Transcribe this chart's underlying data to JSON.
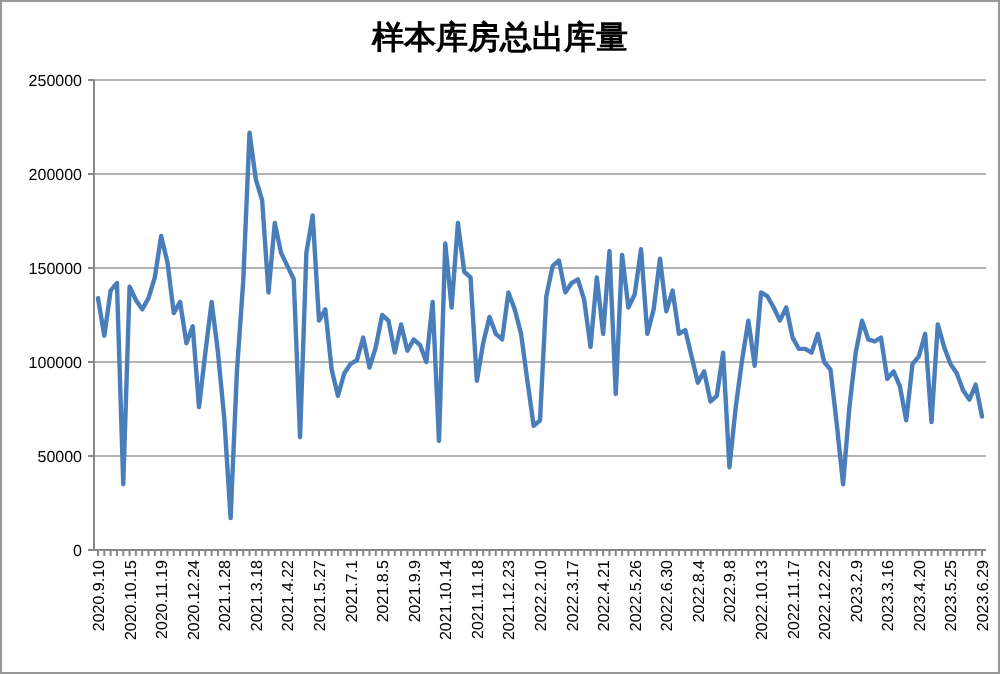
{
  "chart_data": {
    "type": "line",
    "title": "样本库房总出库量",
    "categories": [
      "2020.9.10",
      null,
      null,
      null,
      null,
      "2020.10.15",
      null,
      null,
      null,
      null,
      "2020.11.19",
      null,
      null,
      null,
      null,
      "2020.12.24",
      null,
      null,
      null,
      null,
      "2021.1.28",
      null,
      null,
      null,
      null,
      "2021.3.18",
      null,
      null,
      null,
      null,
      "2021.4.22",
      null,
      null,
      null,
      null,
      "2021.5.27",
      null,
      null,
      null,
      null,
      "2021.7.1",
      null,
      null,
      null,
      null,
      "2021.8.5",
      null,
      null,
      null,
      null,
      "2021.9.9",
      null,
      null,
      null,
      null,
      "2021.10.14",
      null,
      null,
      null,
      null,
      "2021.11.18",
      null,
      null,
      null,
      null,
      "2021.12.23",
      null,
      null,
      null,
      null,
      "2022.2.10",
      null,
      null,
      null,
      null,
      "2022.3.17",
      null,
      null,
      null,
      null,
      "2022.4.21",
      null,
      null,
      null,
      null,
      "2022.5.26",
      null,
      null,
      null,
      null,
      "2022.6.30",
      null,
      null,
      null,
      null,
      "2022.8.4",
      null,
      null,
      null,
      null,
      "2022.9.8",
      null,
      null,
      null,
      null,
      "2022.10.13",
      null,
      null,
      null,
      null,
      "2022.11.17",
      null,
      null,
      null,
      null,
      "2022.12.22",
      null,
      null,
      null,
      null,
      "2023.2.9",
      null,
      null,
      null,
      null,
      "2023.3.16",
      null,
      null,
      null,
      null,
      "2023.4.20",
      null,
      null,
      null,
      null,
      "2023.5.25",
      null,
      null,
      null,
      null,
      "2023.6.29"
    ],
    "series": [
      {
        "color": "#4a7ebb",
        "values": [
          134000,
          114000,
          138000,
          142000,
          35000,
          140000,
          133000,
          128000,
          134000,
          145000,
          167000,
          153000,
          126000,
          132000,
          110000,
          119000,
          76000,
          105000,
          132000,
          105000,
          70000,
          17000,
          95000,
          143000,
          222000,
          197000,
          186000,
          137000,
          174000,
          158000,
          151000,
          144000,
          60000,
          158000,
          178000,
          122000,
          128000,
          96000,
          82000,
          94000,
          99000,
          101000,
          113000,
          97000,
          108000,
          125000,
          122000,
          105000,
          120000,
          106000,
          112000,
          109000,
          100000,
          132000,
          58000,
          163000,
          129000,
          174000,
          148000,
          145000,
          90000,
          110000,
          124000,
          115000,
          112000,
          137000,
          128000,
          115000,
          90000,
          66000,
          69000,
          135000,
          151000,
          154000,
          137000,
          142000,
          144000,
          133000,
          108000,
          145000,
          115000,
          159000,
          83000,
          157000,
          129000,
          136000,
          160000,
          115000,
          128000,
          155000,
          127000,
          138000,
          115000,
          117000,
          103000,
          89000,
          95000,
          79000,
          82000,
          105000,
          44000,
          76000,
          101000,
          122000,
          98000,
          137000,
          135000,
          129000,
          122000,
          129000,
          113000,
          107000,
          107000,
          105000,
          115000,
          100000,
          96000,
          67000,
          35000,
          76000,
          105000,
          122000,
          112000,
          111000,
          113000,
          91000,
          95000,
          87000,
          69000,
          99000,
          103000,
          115000,
          68000,
          120000,
          108000,
          99000,
          94000,
          85000,
          80000,
          88000,
          71000
        ]
      }
    ],
    "ylim": [
      0,
      250000
    ],
    "yticks": [
      0,
      50000,
      100000,
      150000,
      200000,
      250000
    ],
    "grid": "y",
    "marker": "none",
    "line_style": "solid"
  }
}
